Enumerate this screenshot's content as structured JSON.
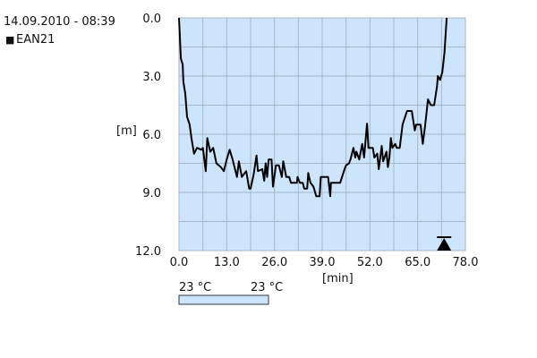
{
  "header": {
    "datetime": "14.09.2010 - 08:39",
    "legend_marker": "■",
    "legend_label": "EAN21"
  },
  "colorbar": {
    "min_label": "23 °C",
    "max_label": "23 °C",
    "color": "#cce5fb"
  },
  "colors": {
    "plot_bg": "#cce5fb",
    "grid": "#a7b8c8",
    "line": "#000000"
  },
  "chart_data": {
    "type": "line",
    "xlabel": "[min]",
    "ylabel": "[m]",
    "xlim": [
      0,
      78
    ],
    "ylim": [
      0,
      12
    ],
    "y_inverted": true,
    "grid": true,
    "x_ticks": [
      "0.0",
      "13.0",
      "26.0",
      "39.0",
      "52.0",
      "65.0",
      "78.0"
    ],
    "y_ticks": [
      "0.0",
      "3.0",
      "6.0",
      "9.0",
      "12.0"
    ],
    "series": [
      {
        "name": "EAN21",
        "x": [
          0,
          0.5,
          1,
          1.2,
          1.7,
          2.2,
          2.9,
          3.4,
          4.1,
          4.9,
          6.1,
          6.5,
          7.3,
          7.7,
          8.5,
          9.3,
          10.2,
          11.4,
          12.2,
          13,
          13.8,
          14.6,
          15.8,
          16.3,
          17.1,
          18.3,
          19.1,
          19.5,
          20.3,
          21.1,
          21.5,
          22.7,
          23.2,
          23.6,
          24,
          24.4,
          25.2,
          25.6,
          26.4,
          27.2,
          28,
          28.4,
          29.2,
          30,
          30.5,
          32.1,
          32.3,
          32.9,
          33.7,
          34.1,
          34.9,
          35.2,
          35.8,
          36.6,
          37.4,
          38.3,
          38.6,
          40.6,
          41.2,
          41.4,
          43.9,
          45.1,
          45.5,
          46.3,
          46.7,
          47.5,
          48,
          48.3,
          49.1,
          49.9,
          50.4,
          51.2,
          51.6,
          52.8,
          53.2,
          54,
          54.4,
          55.2,
          55.6,
          56.5,
          56.9,
          57.3,
          57.7,
          58.1,
          58.9,
          59.3,
          60.1,
          60.9,
          62.1,
          63.4,
          64.2,
          64.6,
          65.8,
          66.4,
          67,
          67.8,
          68.6,
          69.5,
          70.3,
          70.5,
          71.1,
          71.7,
          72.3,
          72.9
        ],
        "y": [
          0,
          2.1,
          2.4,
          3.3,
          3.9,
          5.1,
          5.5,
          6.2,
          7.0,
          6.7,
          6.8,
          6.7,
          7.9,
          6.2,
          6.9,
          6.7,
          7.5,
          7.7,
          7.9,
          7.3,
          6.8,
          7.3,
          8.2,
          7.4,
          8.2,
          7.9,
          8.8,
          8.8,
          8.1,
          7.1,
          7.9,
          7.8,
          8.4,
          7.5,
          8.2,
          7.3,
          7.3,
          8.7,
          7.6,
          7.6,
          8.2,
          7.4,
          8.2,
          8.2,
          8.5,
          8.5,
          8.2,
          8.5,
          8.5,
          8.8,
          8.8,
          8.0,
          8.5,
          8.7,
          9.2,
          9.2,
          8.2,
          8.2,
          9.2,
          8.5,
          8.5,
          7.8,
          7.6,
          7.5,
          7.3,
          6.7,
          7.2,
          6.9,
          7.3,
          6.5,
          7.2,
          5.45,
          6.7,
          6.7,
          7.2,
          7.0,
          7.8,
          6.6,
          7.4,
          6.9,
          7.7,
          7.2,
          6.2,
          6.7,
          6.5,
          6.7,
          6.7,
          5.5,
          4.8,
          4.8,
          5.8,
          5.5,
          5.5,
          6.5,
          5.6,
          4.2,
          4.5,
          4.5,
          3.5,
          3.0,
          3.2,
          2.8,
          1.8,
          0
        ]
      }
    ],
    "annotations": [
      {
        "type": "triangle-marker",
        "x": 72.2,
        "y": 12
      }
    ]
  }
}
